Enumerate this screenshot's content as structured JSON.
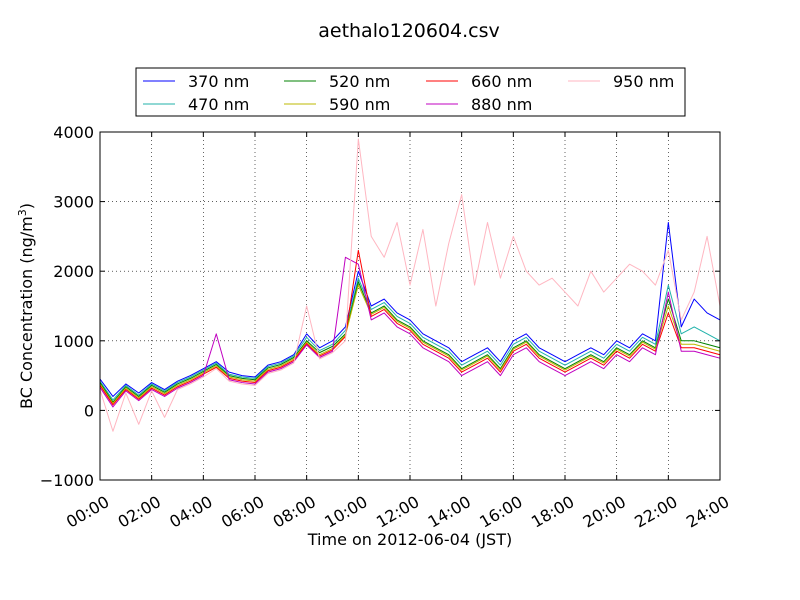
{
  "chart_data": {
    "type": "line",
    "title": "aethalo120604.csv",
    "xlabel": "Time on 2012-06-04 (JST)",
    "ylabel_main": "BC Concentration (ng/m",
    "ylabel_sup": "3",
    "ylabel_end": ")",
    "xlim": [
      "00:00",
      "24:00"
    ],
    "ylim": [
      -1000,
      4000
    ],
    "grid": true,
    "legend_placement": "top",
    "x_ticks": [
      "00:00",
      "02:00",
      "04:00",
      "06:00",
      "08:00",
      "10:00",
      "12:00",
      "14:00",
      "16:00",
      "18:00",
      "20:00",
      "22:00",
      "24:00"
    ],
    "y_ticks": [
      "−1000",
      "0",
      "1000",
      "2000",
      "3000",
      "4000"
    ],
    "y_tick_values": [
      -1000,
      0,
      1000,
      2000,
      3000,
      4000
    ],
    "x": [
      "00:00",
      "00:30",
      "01:00",
      "01:30",
      "02:00",
      "02:30",
      "03:00",
      "03:30",
      "04:00",
      "04:30",
      "05:00",
      "05:30",
      "06:00",
      "06:30",
      "07:00",
      "07:30",
      "08:00",
      "08:30",
      "09:00",
      "09:30",
      "10:00",
      "10:30",
      "11:00",
      "11:30",
      "12:00",
      "12:30",
      "13:00",
      "13:30",
      "14:00",
      "14:30",
      "15:00",
      "15:30",
      "16:00",
      "16:30",
      "17:00",
      "17:30",
      "18:00",
      "18:30",
      "19:00",
      "19:30",
      "20:00",
      "20:30",
      "21:00",
      "21:30",
      "22:00",
      "22:30",
      "23:00",
      "23:30",
      "24:00"
    ],
    "series": [
      {
        "name": "370 nm",
        "color": "#0000ff",
        "values": [
          450,
          200,
          380,
          250,
          400,
          300,
          420,
          500,
          600,
          700,
          550,
          500,
          480,
          650,
          700,
          800,
          1100,
          900,
          1000,
          1200,
          2000,
          1500,
          1600,
          1400,
          1300,
          1100,
          1000,
          900,
          700,
          800,
          900,
          700,
          1000,
          1100,
          900,
          800,
          700,
          800,
          900,
          800,
          1000,
          900,
          1100,
          1000,
          2700,
          1200,
          1600,
          1400,
          1300
        ]
      },
      {
        "name": "470 nm",
        "color": "#20b2aa",
        "values": [
          420,
          150,
          360,
          220,
          380,
          280,
          400,
          480,
          580,
          680,
          520,
          480,
          460,
          630,
          680,
          780,
          1050,
          860,
          950,
          1150,
          1900,
          1450,
          1550,
          1350,
          1250,
          1050,
          950,
          850,
          650,
          750,
          850,
          650,
          950,
          1050,
          850,
          750,
          650,
          750,
          850,
          750,
          950,
          850,
          1050,
          950,
          1800,
          1100,
          1200,
          1100,
          1000
        ]
      },
      {
        "name": "520 nm",
        "color": "#008000",
        "values": [
          400,
          120,
          340,
          200,
          360,
          260,
          380,
          460,
          560,
          660,
          500,
          460,
          440,
          610,
          660,
          760,
          1000,
          830,
          920,
          1100,
          1850,
          1400,
          1500,
          1300,
          1200,
          1000,
          900,
          800,
          600,
          700,
          800,
          600,
          900,
          1000,
          800,
          700,
          600,
          700,
          800,
          700,
          900,
          800,
          1000,
          900,
          1600,
          1000,
          1000,
          950,
          900
        ]
      },
      {
        "name": "590 nm",
        "color": "#bdb800",
        "values": [
          380,
          100,
          320,
          180,
          340,
          240,
          360,
          440,
          540,
          640,
          480,
          440,
          420,
          590,
          640,
          740,
          980,
          800,
          890,
          1080,
          1800,
          1380,
          1480,
          1280,
          1180,
          980,
          880,
          780,
          580,
          680,
          780,
          580,
          880,
          980,
          780,
          680,
          580,
          680,
          780,
          680,
          880,
          780,
          980,
          880,
          1500,
          950,
          950,
          900,
          850
        ]
      },
      {
        "name": "660 nm",
        "color": "#ff0000",
        "values": [
          360,
          80,
          300,
          160,
          320,
          220,
          340,
          420,
          520,
          620,
          460,
          420,
          400,
          570,
          620,
          720,
          960,
          780,
          870,
          1060,
          2300,
          1350,
          1450,
          1250,
          1150,
          950,
          850,
          750,
          550,
          650,
          750,
          550,
          850,
          950,
          750,
          650,
          550,
          650,
          750,
          650,
          850,
          750,
          950,
          850,
          1400,
          900,
          900,
          850,
          800
        ]
      },
      {
        "name": "880 nm",
        "color": "#c000c0",
        "values": [
          330,
          50,
          280,
          140,
          300,
          200,
          320,
          400,
          500,
          1100,
          440,
          400,
          380,
          550,
          600,
          700,
          940,
          760,
          850,
          2200,
          2100,
          1300,
          1400,
          1200,
          1100,
          900,
          800,
          700,
          500,
          600,
          700,
          500,
          800,
          900,
          700,
          600,
          500,
          600,
          700,
          600,
          800,
          700,
          900,
          800,
          1700,
          850,
          850,
          800,
          750
        ]
      },
      {
        "name": "950 nm",
        "color": "#ffb6c1",
        "values": [
          300,
          -300,
          250,
          -200,
          280,
          -100,
          300,
          380,
          480,
          600,
          420,
          380,
          360,
          530,
          580,
          680,
          1500,
          740,
          830,
          1000,
          3900,
          2500,
          2200,
          2700,
          1800,
          2600,
          1500,
          2400,
          3100,
          1800,
          2700,
          1900,
          2500,
          2000,
          1800,
          1900,
          1700,
          1500,
          2000,
          1700,
          1900,
          2100,
          2000,
          1800,
          2300,
          1300,
          1700,
          2500,
          1500
        ]
      }
    ]
  }
}
